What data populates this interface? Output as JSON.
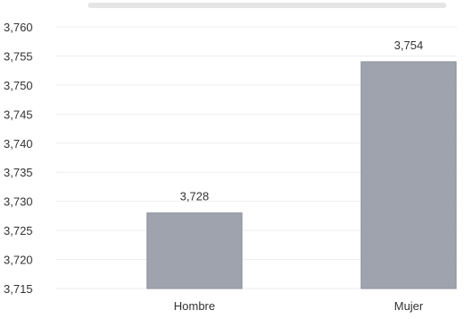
{
  "chart_data": {
    "type": "bar",
    "title": "",
    "xlabel": "",
    "ylabel": "",
    "categories": [
      "Hombre",
      "Mujer"
    ],
    "values": [
      3.728,
      3.754
    ],
    "value_labels": [
      "3,728",
      "3,754"
    ],
    "ylim": [
      3.715,
      3.76
    ],
    "yticks": [
      3.76,
      3.755,
      3.75,
      3.745,
      3.74,
      3.735,
      3.73,
      3.725,
      3.72,
      3.715
    ],
    "ytick_labels": [
      "3,760",
      "3,755",
      "3,750",
      "3,745",
      "3,740",
      "3,735",
      "3,730",
      "3,725",
      "3,720",
      "3,715"
    ],
    "grid": true,
    "legend": "none",
    "colors": {
      "bar": "#9ea3ad",
      "bar_edge": "#8d929c"
    }
  }
}
